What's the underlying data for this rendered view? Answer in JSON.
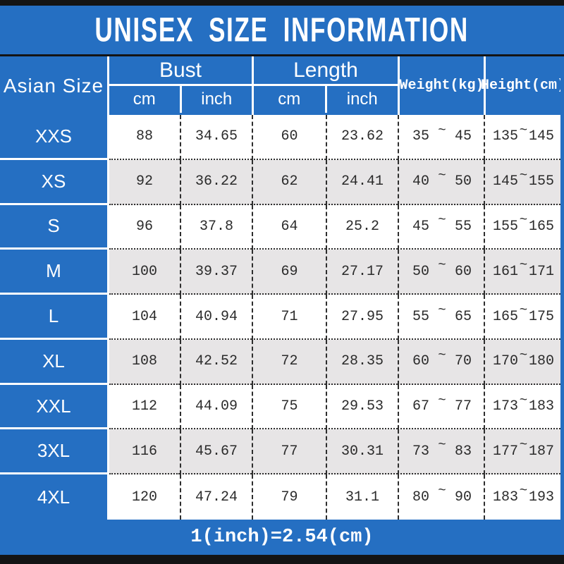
{
  "title": "UNISEX SIZE INFORMATION",
  "header": {
    "size_column": "Asian Size",
    "bust": "Bust",
    "length": "Length",
    "weight": "Weight(kg)",
    "height": "Height(cm)",
    "unit_cm": "cm",
    "unit_inch": "inch"
  },
  "tilde": "~",
  "rows": [
    {
      "size": "XXS",
      "bust_cm": "88",
      "bust_inch": "34.65",
      "length_cm": "60",
      "length_inch": "23.62",
      "weight_min": "35",
      "weight_max": "45",
      "height_min": "135",
      "height_max": "145"
    },
    {
      "size": "XS",
      "bust_cm": "92",
      "bust_inch": "36.22",
      "length_cm": "62",
      "length_inch": "24.41",
      "weight_min": "40",
      "weight_max": "50",
      "height_min": "145",
      "height_max": "155"
    },
    {
      "size": "S",
      "bust_cm": "96",
      "bust_inch": "37.8",
      "length_cm": "64",
      "length_inch": "25.2",
      "weight_min": "45",
      "weight_max": "55",
      "height_min": "155",
      "height_max": "165"
    },
    {
      "size": "M",
      "bust_cm": "100",
      "bust_inch": "39.37",
      "length_cm": "69",
      "length_inch": "27.17",
      "weight_min": "50",
      "weight_max": "60",
      "height_min": "161",
      "height_max": "171"
    },
    {
      "size": "L",
      "bust_cm": "104",
      "bust_inch": "40.94",
      "length_cm": "71",
      "length_inch": "27.95",
      "weight_min": "55",
      "weight_max": "65",
      "height_min": "165",
      "height_max": "175"
    },
    {
      "size": "XL",
      "bust_cm": "108",
      "bust_inch": "42.52",
      "length_cm": "72",
      "length_inch": "28.35",
      "weight_min": "60",
      "weight_max": "70",
      "height_min": "170",
      "height_max": "180"
    },
    {
      "size": "XXL",
      "bust_cm": "112",
      "bust_inch": "44.09",
      "length_cm": "75",
      "length_inch": "29.53",
      "weight_min": "67",
      "weight_max": "77",
      "height_min": "173",
      "height_max": "183"
    },
    {
      "size": "3XL",
      "bust_cm": "116",
      "bust_inch": "45.67",
      "length_cm": "77",
      "length_inch": "30.31",
      "weight_min": "73",
      "weight_max": "83",
      "height_min": "177",
      "height_max": "187"
    },
    {
      "size": "4XL",
      "bust_cm": "120",
      "bust_inch": "47.24",
      "length_cm": "79",
      "length_inch": "31.1",
      "weight_min": "80",
      "weight_max": "90",
      "height_min": "183",
      "height_max": "193"
    }
  ],
  "footer": "1(inch)=2.54(cm)",
  "colors": {
    "accent_blue": "#256fc2",
    "row_alt_gray": "#e7e5e6",
    "bar_black": "#141414",
    "text_dark": "#2b2b2b",
    "text_white": "#ffffff"
  }
}
